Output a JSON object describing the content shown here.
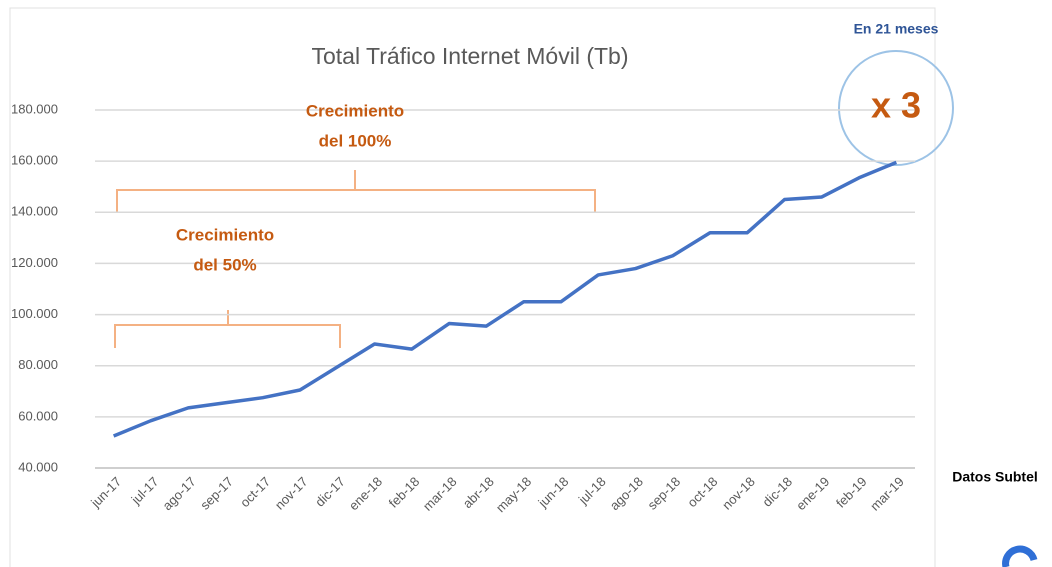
{
  "chart_data": {
    "type": "line",
    "title": "Total Tráfico Internet Móvil (Tb)",
    "categories": [
      "jun-17",
      "jul-17",
      "ago-17",
      "sep-17",
      "oct-17",
      "nov-17",
      "dic-17",
      "ene-18",
      "feb-18",
      "mar-18",
      "abr-18",
      "may-18",
      "jun-18",
      "jul-18",
      "ago-18",
      "sep-18",
      "oct-18",
      "nov-18",
      "dic-18",
      "ene-19",
      "feb-19",
      "mar-19"
    ],
    "series": [
      {
        "name": "Total Tráfico Internet Móvil",
        "color": "#4472c4",
        "values": [
          52500,
          58500,
          63500,
          65500,
          67500,
          70500,
          79500,
          88500,
          86500,
          96500,
          95500,
          105000,
          105000,
          115500,
          118000,
          123000,
          132000,
          132000,
          145000,
          146000,
          153500,
          159500
        ]
      }
    ],
    "ylim": [
      40000,
      180000
    ],
    "yticks": [
      {
        "value": 40000,
        "label": "40.000"
      },
      {
        "value": 60000,
        "label": "60.000"
      },
      {
        "value": 80000,
        "label": "80.000"
      },
      {
        "value": 100000,
        "label": "100.000"
      },
      {
        "value": 120000,
        "label": "120.000"
      },
      {
        "value": 140000,
        "label": "140.000"
      },
      {
        "value": 160000,
        "label": "160.000"
      },
      {
        "value": 180000,
        "label": "180.000"
      }
    ],
    "grid": true,
    "annotations": [
      {
        "lines": [
          "Crecimiento",
          "del 100%"
        ],
        "color": "#c55a11"
      },
      {
        "lines": [
          "Crecimiento",
          "del 50%"
        ],
        "color": "#c55a11"
      },
      {
        "lines": [
          "En 21 meses"
        ],
        "color": "#2f5597"
      },
      {
        "lines": [
          "x 3"
        ],
        "color": "#c55a11"
      },
      {
        "lines": [
          "Datos Subtel"
        ],
        "color": "#000000"
      }
    ]
  }
}
